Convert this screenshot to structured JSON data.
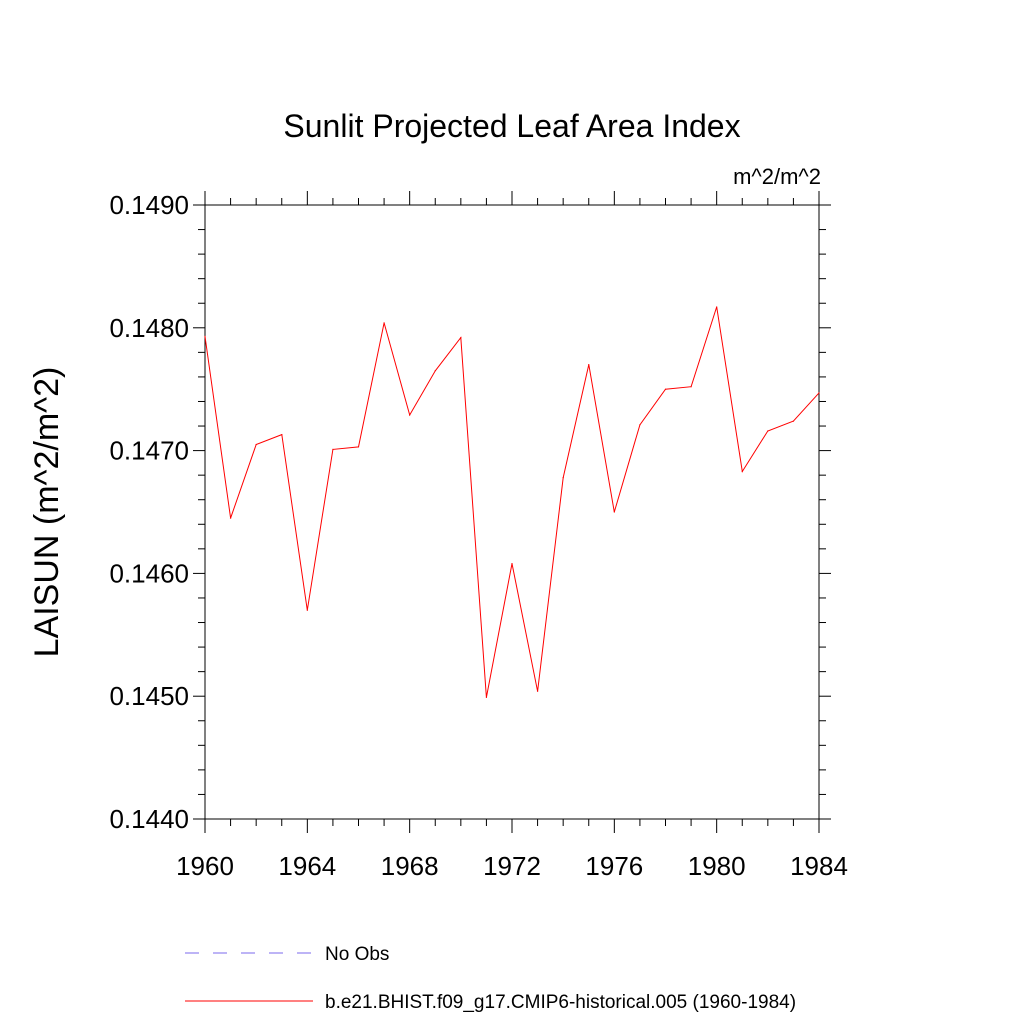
{
  "chart_data": {
    "type": "line",
    "title": "Sunlit Projected Leaf Area Index",
    "units": "m^2/m^2",
    "ylabel": "LAISUN  (m^2/m^2)",
    "xlabel": "",
    "xlim": [
      1960,
      1984
    ],
    "ylim": [
      0.144,
      0.149
    ],
    "x_ticks": [
      1960,
      1964,
      1968,
      1972,
      1976,
      1980,
      1984
    ],
    "x_tick_labels": [
      "1960",
      "1964",
      "1968",
      "1972",
      "1976",
      "1980",
      "1984"
    ],
    "y_ticks": [
      0.144,
      0.145,
      0.146,
      0.147,
      0.148,
      0.149
    ],
    "y_tick_labels": [
      "0.1440",
      "0.1450",
      "0.1460",
      "0.1470",
      "0.1480",
      "0.1490"
    ],
    "grid": false,
    "legend_position": "bottom",
    "series": [
      {
        "name": "b.e21.BHIST.f09_g17.CMIP6-historical.005 (1960-1984)",
        "color": "#ff0000",
        "style": "solid",
        "x": [
          1960,
          1961,
          1962,
          1963,
          1964,
          1965,
          1966,
          1967,
          1968,
          1969,
          1970,
          1971,
          1972,
          1973,
          1974,
          1975,
          1976,
          1977,
          1978,
          1979,
          1980,
          1981,
          1982,
          1983,
          1984
        ],
        "values": [
          0.14793,
          0.14645,
          0.14705,
          0.14713,
          0.1457,
          0.14701,
          0.14703,
          0.14804,
          0.14729,
          0.14765,
          0.14792,
          0.14499,
          0.14608,
          0.14504,
          0.14678,
          0.1477,
          0.1465,
          0.14721,
          0.1475,
          0.14752,
          0.14817,
          0.14683,
          0.14716,
          0.14724,
          0.14747
        ]
      }
    ],
    "legend": [
      {
        "label": "No Obs",
        "color": "#7b68ee",
        "style": "dashed"
      },
      {
        "label": "b.e21.BHIST.f09_g17.CMIP6-historical.005 (1960-1984)",
        "color": "#ff0000",
        "style": "solid"
      }
    ]
  }
}
